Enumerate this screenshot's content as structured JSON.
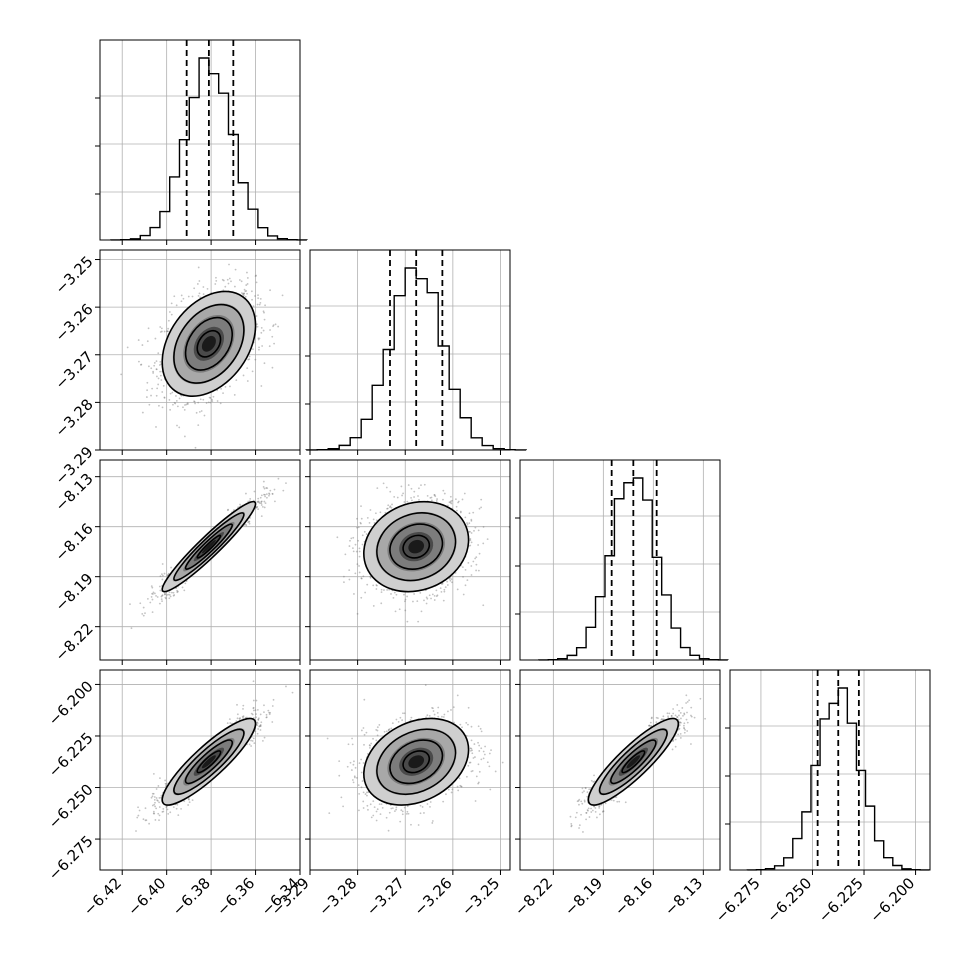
{
  "chart_data": {
    "type": "corner",
    "parameters": [
      {
        "range": [
          -6.43,
          -6.34
        ],
        "ticks": [
          -6.42,
          -6.4,
          -6.38,
          -6.36,
          -6.34
        ],
        "tick_labels": [
          "−6.42",
          "−6.40",
          "−6.38",
          "−6.36",
          "−6.34"
        ],
        "median": -6.381,
        "q16": -6.391,
        "q84": -6.37,
        "sigma": 0.0105
      },
      {
        "range": [
          -3.29,
          -3.248
        ],
        "ticks": [
          -3.29,
          -3.28,
          -3.27,
          -3.26,
          -3.25
        ],
        "tick_labels": [
          "−3.29",
          "−3.28",
          "−3.27",
          "−3.26",
          "−3.25"
        ],
        "median": -3.2677,
        "q16": -3.2732,
        "q84": -3.2622,
        "sigma": 0.0055
      },
      {
        "range": [
          -8.24,
          -8.12
        ],
        "ticks": [
          -8.22,
          -8.19,
          -8.16,
          -8.13
        ],
        "tick_labels": [
          "−8.22",
          "−8.19",
          "−8.16",
          "−8.13"
        ],
        "median": -8.172,
        "q16": -8.185,
        "q84": -8.158,
        "sigma": 0.0135
      },
      {
        "range": [
          -6.29,
          -6.193
        ],
        "ticks": [
          -6.275,
          -6.25,
          -6.225,
          -6.2
        ],
        "tick_labels": [
          "−6.275",
          "−6.250",
          "−6.225",
          "−6.200"
        ],
        "median": -6.2375,
        "q16": -6.2475,
        "q84": -6.2275,
        "sigma": 0.0105
      }
    ],
    "correlations": [
      {
        "pair": [
          1,
          0
        ],
        "rho": 0.35
      },
      {
        "pair": [
          2,
          0
        ],
        "rho": 0.95
      },
      {
        "pair": [
          2,
          1
        ],
        "rho": 0.15
      },
      {
        "pair": [
          3,
          0
        ],
        "rho": 0.88
      },
      {
        "pair": [
          3,
          1
        ],
        "rho": 0.28
      },
      {
        "pair": [
          3,
          2
        ],
        "rho": 0.88
      }
    ],
    "histogram_bins": 20,
    "contour_levels": [
      0.5,
      1.0,
      1.5,
      2.0
    ],
    "grid": true,
    "axis_labels": [],
    "title": ""
  },
  "style": {
    "line_color": "#000000",
    "scatter_color": "#7a7a7a",
    "grid_color": "#b0b0b0"
  }
}
